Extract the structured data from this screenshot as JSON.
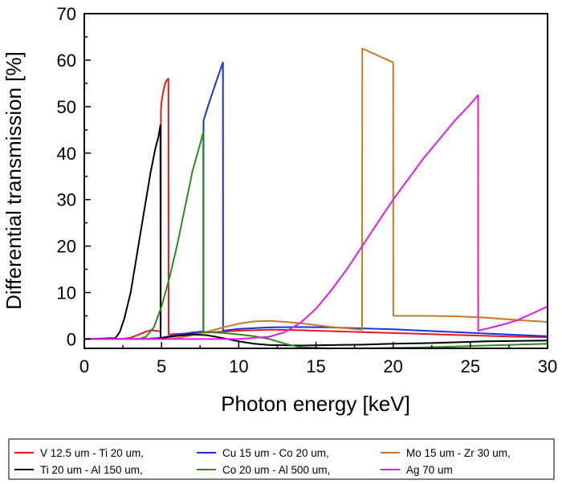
{
  "chart_data": {
    "type": "line",
    "xlabel": "Photon energy [keV]",
    "ylabel": "Differential transmission [%]",
    "xlim": [
      0,
      30
    ],
    "ylim": [
      -2,
      70
    ],
    "xticks": [
      0,
      5,
      10,
      15,
      20,
      25,
      30
    ],
    "yticks": [
      0,
      10,
      20,
      30,
      40,
      50,
      60,
      70
    ],
    "grid": false,
    "legend_position": "bottom",
    "series": [
      {
        "name": "V 12.5 um - Ti 20 um,",
        "color": "#e8191d",
        "x": [
          0,
          2.5,
          3.0,
          3.5,
          4.0,
          4.3,
          4.6,
          4.85,
          4.95,
          4.96,
          5.0,
          5.1,
          5.2,
          5.3,
          5.45,
          5.46,
          6.0,
          8.0,
          10.0,
          12.0,
          14.0,
          16.0,
          18.0,
          20.0,
          22.0,
          24.0,
          26.0,
          28.0,
          30.0
        ],
        "y": [
          0,
          0.05,
          0.3,
          0.9,
          1.6,
          1.9,
          1.8,
          1.7,
          1.6,
          49,
          51,
          53,
          54.5,
          55.5,
          56,
          1.0,
          1.1,
          1.4,
          1.8,
          2.0,
          1.9,
          1.7,
          1.5,
          1.3,
          1.1,
          0.9,
          0.7,
          0.5,
          0.4
        ]
      },
      {
        "name": "Cu 15 um - Co 20 um,",
        "color": "#1633e0",
        "x": [
          0,
          4.0,
          5.0,
          6.0,
          7.0,
          7.6,
          7.71,
          7.72,
          8.0,
          8.5,
          8.98,
          8.99,
          10.0,
          12.0,
          14.0,
          16.0,
          18.0,
          20.0,
          22.0,
          24.0,
          26.0,
          28.0,
          30.0
        ],
        "y": [
          0,
          0.05,
          0.3,
          0.9,
          1.4,
          1.6,
          1.6,
          47,
          50,
          55,
          59.5,
          1.8,
          2.2,
          2.5,
          2.6,
          2.5,
          2.3,
          2.1,
          1.8,
          1.5,
          1.2,
          0.9,
          0.6
        ]
      },
      {
        "name": "Mo 15 um - Zr 30 um,",
        "color": "#c97a1e",
        "x": [
          0,
          5.0,
          6.0,
          7.0,
          8.0,
          9.0,
          10.0,
          11.0,
          12.0,
          13.0,
          14.0,
          16.0,
          17.99,
          18.0,
          19.0,
          20.0,
          20.01,
          22.0,
          24.0,
          26.0,
          28.0,
          30.0
        ],
        "y": [
          0,
          0,
          0.2,
          0.8,
          1.6,
          2.5,
          3.3,
          3.8,
          3.9,
          3.7,
          3.4,
          2.6,
          2.0,
          62.5,
          61,
          59.5,
          5.0,
          5.0,
          4.9,
          4.6,
          4.1,
          3.7
        ]
      },
      {
        "name": "Ti 20 um - Al 150 um,",
        "color": "#000000",
        "x": [
          0,
          2.0,
          2.3,
          2.6,
          3.0,
          3.3,
          3.6,
          4.0,
          4.3,
          4.6,
          4.8,
          4.93,
          4.94,
          5.5,
          7.0,
          8.0,
          9.0,
          10.0,
          11.0,
          12.0,
          14.0,
          16.0,
          18.0,
          20.0,
          22.0,
          24.0,
          26.0,
          28.0,
          30.0
        ],
        "y": [
          0,
          0.2,
          1.5,
          4.5,
          10,
          16,
          22,
          30,
          36,
          41,
          43.5,
          46,
          0.2,
          0.5,
          1.0,
          0.8,
          0.2,
          -0.5,
          -1.0,
          -1.3,
          -1.4,
          -1.3,
          -1.2,
          -1.0,
          -0.9,
          -0.7,
          -0.5,
          -0.4,
          -0.3
        ]
      },
      {
        "name": "Co 20 um - Al 500 um,",
        "color": "#2e8a1c",
        "x": [
          0,
          3.5,
          4.0,
          4.5,
          5.0,
          5.5,
          6.0,
          6.5,
          7.0,
          7.5,
          7.7,
          7.71,
          8.0,
          9.0,
          10.0,
          11.0,
          12.0,
          13.0,
          14.0,
          16.0,
          18.0,
          20.0,
          22.0,
          24.0,
          26.0,
          28.0,
          30.0
        ],
        "y": [
          0,
          0,
          0.5,
          2.5,
          7,
          13,
          20,
          28,
          36,
          42,
          44.5,
          1.5,
          1.5,
          1.3,
          1.0,
          0.6,
          0,
          -1.0,
          -1.8,
          -2,
          -2,
          -1.9,
          -1.8,
          -1.6,
          -1.4,
          -1.2,
          -1.0
        ]
      },
      {
        "name": "Ag 70 um",
        "color": "#e21be3",
        "x": [
          0,
          10.0,
          12.0,
          13.0,
          14.0,
          15.0,
          16.0,
          17.0,
          18.0,
          19.0,
          20.0,
          21.0,
          22.0,
          23.0,
          24.0,
          25.0,
          25.5,
          25.51,
          26.0,
          27.0,
          28.0,
          29.0,
          30.0
        ],
        "y": [
          0,
          0,
          0.5,
          1.5,
          3.5,
          6.5,
          10.5,
          15,
          20,
          25,
          30,
          34.5,
          39,
          43,
          47,
          50.5,
          52.5,
          1.8,
          2.2,
          3.0,
          4.0,
          5.5,
          7.0
        ]
      }
    ]
  }
}
